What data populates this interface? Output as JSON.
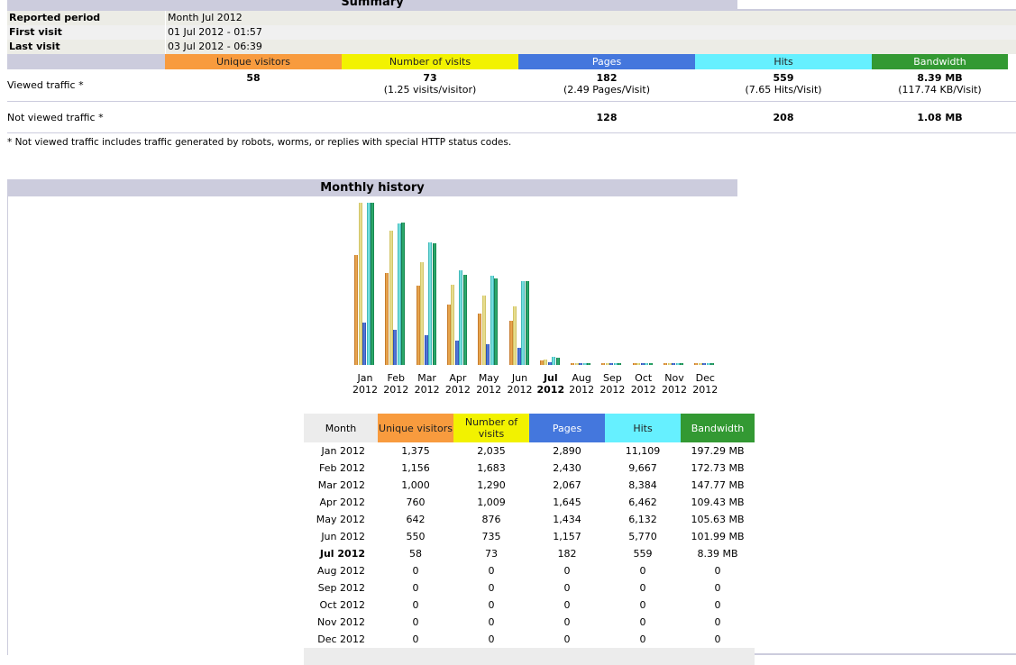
{
  "summary": {
    "title": "Summary",
    "reported_period": {
      "label": "Reported period",
      "value": "Month Jul 2012"
    },
    "first_visit": {
      "label": "First visit",
      "value": "01 Jul 2012 - 01:57"
    },
    "last_visit": {
      "label": "Last visit",
      "value": "03 Jul 2012 - 06:39"
    },
    "columns": [
      "Unique visitors",
      "Number of visits",
      "Pages",
      "Hits",
      "Bandwidth"
    ],
    "viewed": {
      "label": "Viewed traffic *",
      "unique": "58",
      "visits": "73",
      "visits_sub": "(1.25 visits/visitor)",
      "pages": "182",
      "pages_sub": "(2.49 Pages/Visit)",
      "hits": "559",
      "hits_sub": "(7.65 Hits/Visit)",
      "bandwidth": "8.39 MB",
      "bandwidth_sub": "(117.74 KB/Visit)"
    },
    "not_viewed": {
      "label": "Not viewed traffic *",
      "pages": "128",
      "hits": "208",
      "bandwidth": "1.08 MB"
    },
    "note": "* Not viewed traffic includes traffic generated by robots, worms, or replies with special HTTP status codes."
  },
  "history": {
    "title": "Monthly history",
    "current_month_index": 6,
    "table_headers": {
      "month": "Month",
      "unique": "Unique visitors",
      "visits": "Number of visits",
      "pages": "Pages",
      "hits": "Hits",
      "bandwidth": "Bandwidth"
    },
    "rows": [
      {
        "month": "Jan 2012",
        "unique": "1,375",
        "visits": "2,035",
        "pages": "2,890",
        "hits": "11,109",
        "bandwidth": "197.29 MB"
      },
      {
        "month": "Feb 2012",
        "unique": "1,156",
        "visits": "1,683",
        "pages": "2,430",
        "hits": "9,667",
        "bandwidth": "172.73 MB"
      },
      {
        "month": "Mar 2012",
        "unique": "1,000",
        "visits": "1,290",
        "pages": "2,067",
        "hits": "8,384",
        "bandwidth": "147.77 MB"
      },
      {
        "month": "Apr 2012",
        "unique": "760",
        "visits": "1,009",
        "pages": "1,645",
        "hits": "6,462",
        "bandwidth": "109.43 MB"
      },
      {
        "month": "May 2012",
        "unique": "642",
        "visits": "876",
        "pages": "1,434",
        "hits": "6,132",
        "bandwidth": "105.63 MB"
      },
      {
        "month": "Jun 2012",
        "unique": "550",
        "visits": "735",
        "pages": "1,157",
        "hits": "5,770",
        "bandwidth": "101.99 MB"
      },
      {
        "month": "Jul 2012",
        "unique": "58",
        "visits": "73",
        "pages": "182",
        "hits": "559",
        "bandwidth": "8.39 MB"
      },
      {
        "month": "Aug 2012",
        "unique": "0",
        "visits": "0",
        "pages": "0",
        "hits": "0",
        "bandwidth": "0"
      },
      {
        "month": "Sep 2012",
        "unique": "0",
        "visits": "0",
        "pages": "0",
        "hits": "0",
        "bandwidth": "0"
      },
      {
        "month": "Oct 2012",
        "unique": "0",
        "visits": "0",
        "pages": "0",
        "hits": "0",
        "bandwidth": "0"
      },
      {
        "month": "Nov 2012",
        "unique": "0",
        "visits": "0",
        "pages": "0",
        "hits": "0",
        "bandwidth": "0"
      },
      {
        "month": "Dec 2012",
        "unique": "0",
        "visits": "0",
        "pages": "0",
        "hits": "0",
        "bandwidth": "0"
      }
    ]
  },
  "chart_data": {
    "type": "bar",
    "categories": [
      "Jan 2012",
      "Feb 2012",
      "Mar 2012",
      "Apr 2012",
      "May 2012",
      "Jun 2012",
      "Jul 2012",
      "Aug 2012",
      "Sep 2012",
      "Oct 2012",
      "Nov 2012",
      "Dec 2012"
    ],
    "tick_labels": [
      [
        "Jan",
        "2012"
      ],
      [
        "Feb",
        "2012"
      ],
      [
        "Mar",
        "2012"
      ],
      [
        "Apr",
        "2012"
      ],
      [
        "May",
        "2012"
      ],
      [
        "Jun",
        "2012"
      ],
      [
        "Jul",
        "2012"
      ],
      [
        "Aug",
        "2012"
      ],
      [
        "Sep",
        "2012"
      ],
      [
        "Oct",
        "2012"
      ],
      [
        "Nov",
        "2012"
      ],
      [
        "Dec",
        "2012"
      ]
    ],
    "series": [
      {
        "name": "Unique visitors",
        "color": "#f89b3e",
        "values": [
          1375,
          1156,
          1000,
          760,
          642,
          550,
          58,
          0,
          0,
          0,
          0,
          0
        ]
      },
      {
        "name": "Number of visits",
        "color": "#f2f200",
        "values": [
          2035,
          1683,
          1290,
          1009,
          876,
          735,
          73,
          0,
          0,
          0,
          0,
          0
        ]
      },
      {
        "name": "Pages",
        "color": "#4477dd",
        "values": [
          2890,
          2430,
          2067,
          1645,
          1434,
          1157,
          182,
          0,
          0,
          0,
          0,
          0
        ]
      },
      {
        "name": "Hits",
        "color": "#66f0ff",
        "values": [
          11109,
          9667,
          8384,
          6462,
          6132,
          5770,
          559,
          0,
          0,
          0,
          0,
          0
        ]
      },
      {
        "name": "Bandwidth",
        "color": "#339933",
        "values": [
          197.29,
          172.73,
          147.77,
          109.43,
          105.63,
          101.99,
          8.39,
          0,
          0,
          0,
          0,
          0
        ]
      }
    ],
    "scale_groups": [
      [
        "Unique visitors",
        "Number of visits"
      ],
      [
        "Pages",
        "Hits"
      ],
      [
        "Bandwidth"
      ]
    ],
    "grid": false,
    "legend": "none"
  }
}
